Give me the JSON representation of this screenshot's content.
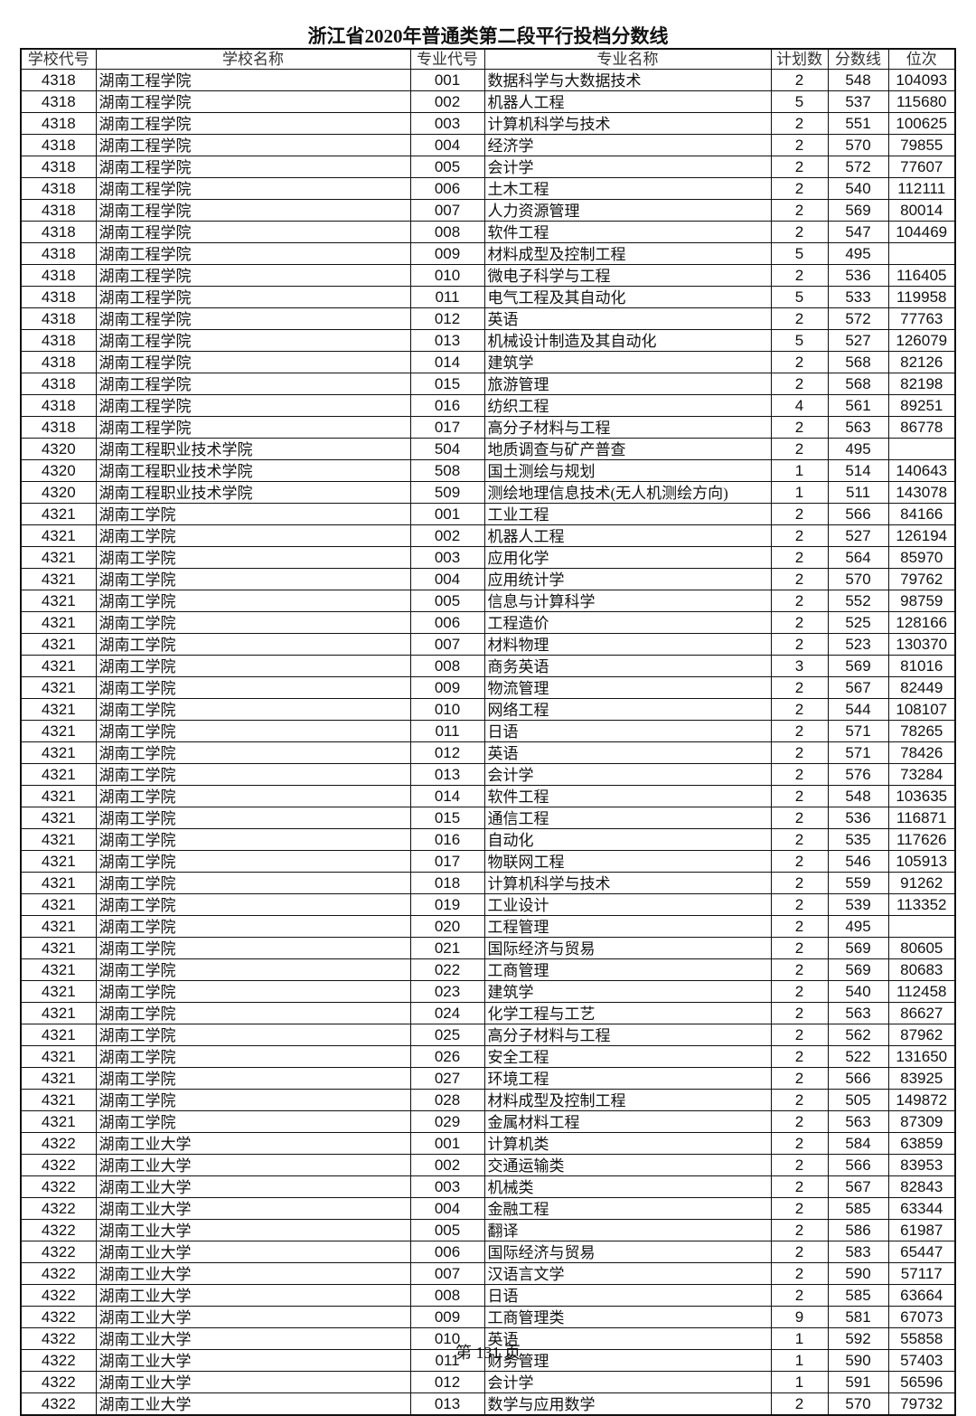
{
  "title": "浙江省2020年普通类第二段平行投档分数线",
  "columns": [
    "学校代号",
    "学校名称",
    "专业代号",
    "专业名称",
    "计划数",
    "分数线",
    "位次"
  ],
  "rows": [
    [
      "4318",
      "湖南工程学院",
      "001",
      "数据科学与大数据技术",
      "2",
      "548",
      "104093"
    ],
    [
      "4318",
      "湖南工程学院",
      "002",
      "机器人工程",
      "5",
      "537",
      "115680"
    ],
    [
      "4318",
      "湖南工程学院",
      "003",
      "计算机科学与技术",
      "2",
      "551",
      "100625"
    ],
    [
      "4318",
      "湖南工程学院",
      "004",
      "经济学",
      "2",
      "570",
      "79855"
    ],
    [
      "4318",
      "湖南工程学院",
      "005",
      "会计学",
      "2",
      "572",
      "77607"
    ],
    [
      "4318",
      "湖南工程学院",
      "006",
      "土木工程",
      "2",
      "540",
      "112111"
    ],
    [
      "4318",
      "湖南工程学院",
      "007",
      "人力资源管理",
      "2",
      "569",
      "80014"
    ],
    [
      "4318",
      "湖南工程学院",
      "008",
      "软件工程",
      "2",
      "547",
      "104469"
    ],
    [
      "4318",
      "湖南工程学院",
      "009",
      "材料成型及控制工程",
      "5",
      "495",
      ""
    ],
    [
      "4318",
      "湖南工程学院",
      "010",
      "微电子科学与工程",
      "2",
      "536",
      "116405"
    ],
    [
      "4318",
      "湖南工程学院",
      "011",
      "电气工程及其自动化",
      "5",
      "533",
      "119958"
    ],
    [
      "4318",
      "湖南工程学院",
      "012",
      "英语",
      "2",
      "572",
      "77763"
    ],
    [
      "4318",
      "湖南工程学院",
      "013",
      "机械设计制造及其自动化",
      "5",
      "527",
      "126079"
    ],
    [
      "4318",
      "湖南工程学院",
      "014",
      "建筑学",
      "2",
      "568",
      "82126"
    ],
    [
      "4318",
      "湖南工程学院",
      "015",
      "旅游管理",
      "2",
      "568",
      "82198"
    ],
    [
      "4318",
      "湖南工程学院",
      "016",
      "纺织工程",
      "4",
      "561",
      "89251"
    ],
    [
      "4318",
      "湖南工程学院",
      "017",
      "高分子材料与工程",
      "2",
      "563",
      "86778"
    ],
    [
      "4320",
      "湖南工程职业技术学院",
      "504",
      "地质调查与矿产普查",
      "2",
      "495",
      ""
    ],
    [
      "4320",
      "湖南工程职业技术学院",
      "508",
      "国土测绘与规划",
      "1",
      "514",
      "140643"
    ],
    [
      "4320",
      "湖南工程职业技术学院",
      "509",
      "测绘地理信息技术(无人机测绘方向)",
      "1",
      "511",
      "143078"
    ],
    [
      "4321",
      "湖南工学院",
      "001",
      "工业工程",
      "2",
      "566",
      "84166"
    ],
    [
      "4321",
      "湖南工学院",
      "002",
      "机器人工程",
      "2",
      "527",
      "126194"
    ],
    [
      "4321",
      "湖南工学院",
      "003",
      "应用化学",
      "2",
      "564",
      "85970"
    ],
    [
      "4321",
      "湖南工学院",
      "004",
      "应用统计学",
      "2",
      "570",
      "79762"
    ],
    [
      "4321",
      "湖南工学院",
      "005",
      "信息与计算科学",
      "2",
      "552",
      "98759"
    ],
    [
      "4321",
      "湖南工学院",
      "006",
      "工程造价",
      "2",
      "525",
      "128166"
    ],
    [
      "4321",
      "湖南工学院",
      "007",
      "材料物理",
      "2",
      "523",
      "130370"
    ],
    [
      "4321",
      "湖南工学院",
      "008",
      "商务英语",
      "3",
      "569",
      "81016"
    ],
    [
      "4321",
      "湖南工学院",
      "009",
      "物流管理",
      "2",
      "567",
      "82449"
    ],
    [
      "4321",
      "湖南工学院",
      "010",
      "网络工程",
      "2",
      "544",
      "108107"
    ],
    [
      "4321",
      "湖南工学院",
      "011",
      "日语",
      "2",
      "571",
      "78265"
    ],
    [
      "4321",
      "湖南工学院",
      "012",
      "英语",
      "2",
      "571",
      "78426"
    ],
    [
      "4321",
      "湖南工学院",
      "013",
      "会计学",
      "2",
      "576",
      "73284"
    ],
    [
      "4321",
      "湖南工学院",
      "014",
      "软件工程",
      "2",
      "548",
      "103635"
    ],
    [
      "4321",
      "湖南工学院",
      "015",
      "通信工程",
      "2",
      "536",
      "116871"
    ],
    [
      "4321",
      "湖南工学院",
      "016",
      "自动化",
      "2",
      "535",
      "117626"
    ],
    [
      "4321",
      "湖南工学院",
      "017",
      "物联网工程",
      "2",
      "546",
      "105913"
    ],
    [
      "4321",
      "湖南工学院",
      "018",
      "计算机科学与技术",
      "2",
      "559",
      "91262"
    ],
    [
      "4321",
      "湖南工学院",
      "019",
      "工业设计",
      "2",
      "539",
      "113352"
    ],
    [
      "4321",
      "湖南工学院",
      "020",
      "工程管理",
      "2",
      "495",
      ""
    ],
    [
      "4321",
      "湖南工学院",
      "021",
      "国际经济与贸易",
      "2",
      "569",
      "80605"
    ],
    [
      "4321",
      "湖南工学院",
      "022",
      "工商管理",
      "2",
      "569",
      "80683"
    ],
    [
      "4321",
      "湖南工学院",
      "023",
      "建筑学",
      "2",
      "540",
      "112458"
    ],
    [
      "4321",
      "湖南工学院",
      "024",
      "化学工程与工艺",
      "2",
      "563",
      "86627"
    ],
    [
      "4321",
      "湖南工学院",
      "025",
      "高分子材料与工程",
      "2",
      "562",
      "87962"
    ],
    [
      "4321",
      "湖南工学院",
      "026",
      "安全工程",
      "2",
      "522",
      "131650"
    ],
    [
      "4321",
      "湖南工学院",
      "027",
      "环境工程",
      "2",
      "566",
      "83925"
    ],
    [
      "4321",
      "湖南工学院",
      "028",
      "材料成型及控制工程",
      "2",
      "505",
      "149872"
    ],
    [
      "4321",
      "湖南工学院",
      "029",
      "金属材料工程",
      "2",
      "563",
      "87309"
    ],
    [
      "4322",
      "湖南工业大学",
      "001",
      "计算机类",
      "2",
      "584",
      "63859"
    ],
    [
      "4322",
      "湖南工业大学",
      "002",
      "交通运输类",
      "2",
      "566",
      "83953"
    ],
    [
      "4322",
      "湖南工业大学",
      "003",
      "机械类",
      "2",
      "567",
      "82843"
    ],
    [
      "4322",
      "湖南工业大学",
      "004",
      "金融工程",
      "2",
      "585",
      "63344"
    ],
    [
      "4322",
      "湖南工业大学",
      "005",
      "翻译",
      "2",
      "586",
      "61987"
    ],
    [
      "4322",
      "湖南工业大学",
      "006",
      "国际经济与贸易",
      "2",
      "583",
      "65447"
    ],
    [
      "4322",
      "湖南工业大学",
      "007",
      "汉语言文学",
      "2",
      "590",
      "57117"
    ],
    [
      "4322",
      "湖南工业大学",
      "008",
      "日语",
      "2",
      "585",
      "63664"
    ],
    [
      "4322",
      "湖南工业大学",
      "009",
      "工商管理类",
      "9",
      "581",
      "67073"
    ],
    [
      "4322",
      "湖南工业大学",
      "010",
      "英语",
      "1",
      "592",
      "55858"
    ],
    [
      "4322",
      "湖南工业大学",
      "011",
      "财务管理",
      "1",
      "590",
      "57403"
    ],
    [
      "4322",
      "湖南工业大学",
      "012",
      "会计学",
      "1",
      "591",
      "56596"
    ],
    [
      "4322",
      "湖南工业大学",
      "013",
      "数学与应用数学",
      "2",
      "570",
      "79732"
    ]
  ],
  "footer": "第 131 页"
}
